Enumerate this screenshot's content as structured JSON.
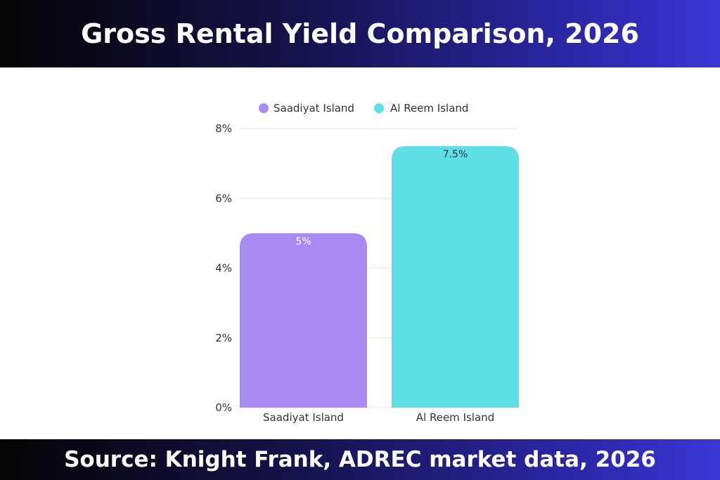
{
  "header": {
    "title": "Gross Rental Yield Comparison, 2026"
  },
  "footer": {
    "source": "Source: Knight Frank, ADREC market data, 2026"
  },
  "colors": {
    "saadiyat": "#a98af2",
    "reem": "#5fe0e6",
    "grid": "#e6e6e6"
  },
  "chart_data": {
    "type": "bar",
    "title": "Gross Rental Yield Comparison, 2026",
    "xlabel": "",
    "ylabel": "",
    "categories": [
      "Saadiyat Island",
      "Al Reem Island"
    ],
    "values": [
      5,
      7.5
    ],
    "value_labels": [
      "5%",
      "7.5%"
    ],
    "ylim": [
      0,
      8
    ],
    "yticks": [
      0,
      2,
      4,
      6,
      8
    ],
    "ytick_labels": [
      "0%",
      "2%",
      "4%",
      "6%",
      "8%"
    ],
    "legend": [
      "Saadiyat Island",
      "Al Reem Island"
    ],
    "legend_position": "top",
    "grid": true
  }
}
